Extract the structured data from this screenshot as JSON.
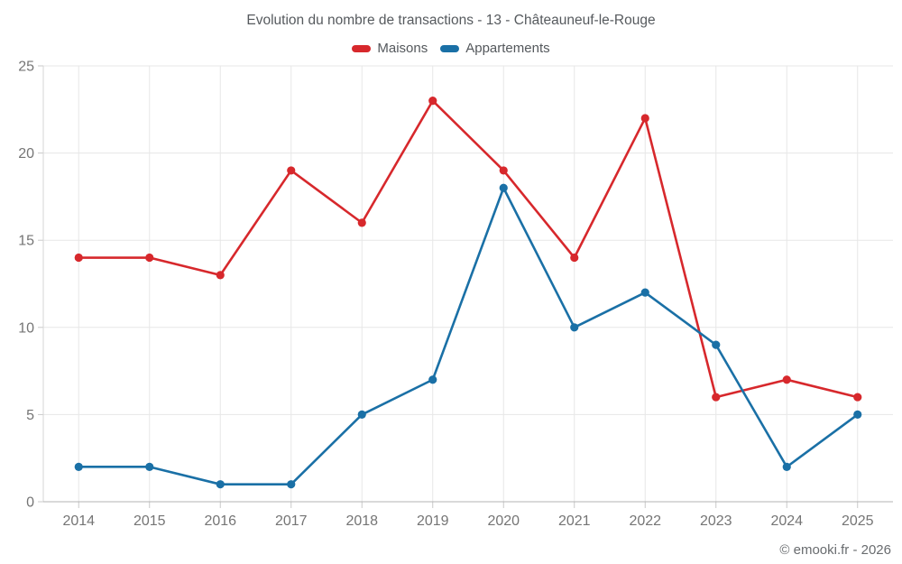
{
  "title": "Evolution du nombre de transactions - 13 - Châteauneuf-le-Rouge",
  "footer": "© emooki.fr - 2026",
  "legend": [
    {
      "label": "Maisons",
      "color": "#d7282c"
    },
    {
      "label": "Appartements",
      "color": "#1a70a6"
    }
  ],
  "chart_data": {
    "type": "line",
    "title": "Evolution du nombre de transactions - 13 - Châteauneuf-le-Rouge",
    "categories": [
      "2014",
      "2015",
      "2016",
      "2017",
      "2018",
      "2019",
      "2020",
      "2021",
      "2022",
      "2023",
      "2024",
      "2025"
    ],
    "series": [
      {
        "name": "Maisons",
        "color": "#d7282c",
        "values": [
          14,
          14,
          13,
          19,
          16,
          23,
          19,
          14,
          22,
          6,
          7,
          6
        ]
      },
      {
        "name": "Appartements",
        "color": "#1a70a6",
        "values": [
          2,
          2,
          1,
          1,
          5,
          7,
          18,
          10,
          12,
          9,
          2,
          5
        ]
      }
    ],
    "xlabel": "",
    "ylabel": "",
    "ylim": [
      0,
      25
    ],
    "y_ticks": [
      0,
      5,
      10,
      15,
      20,
      25
    ],
    "grid": true,
    "legend_position": "top",
    "marker": "circle"
  },
  "colors": {
    "grid": "#e7e7e7",
    "tick": "#c9c9c9",
    "axis_bottom": "#b3b3b3",
    "axis_left": "#d6d6d6",
    "axis_label": "#757575",
    "maisons": "#d7282c",
    "appartements": "#1a70a6"
  }
}
